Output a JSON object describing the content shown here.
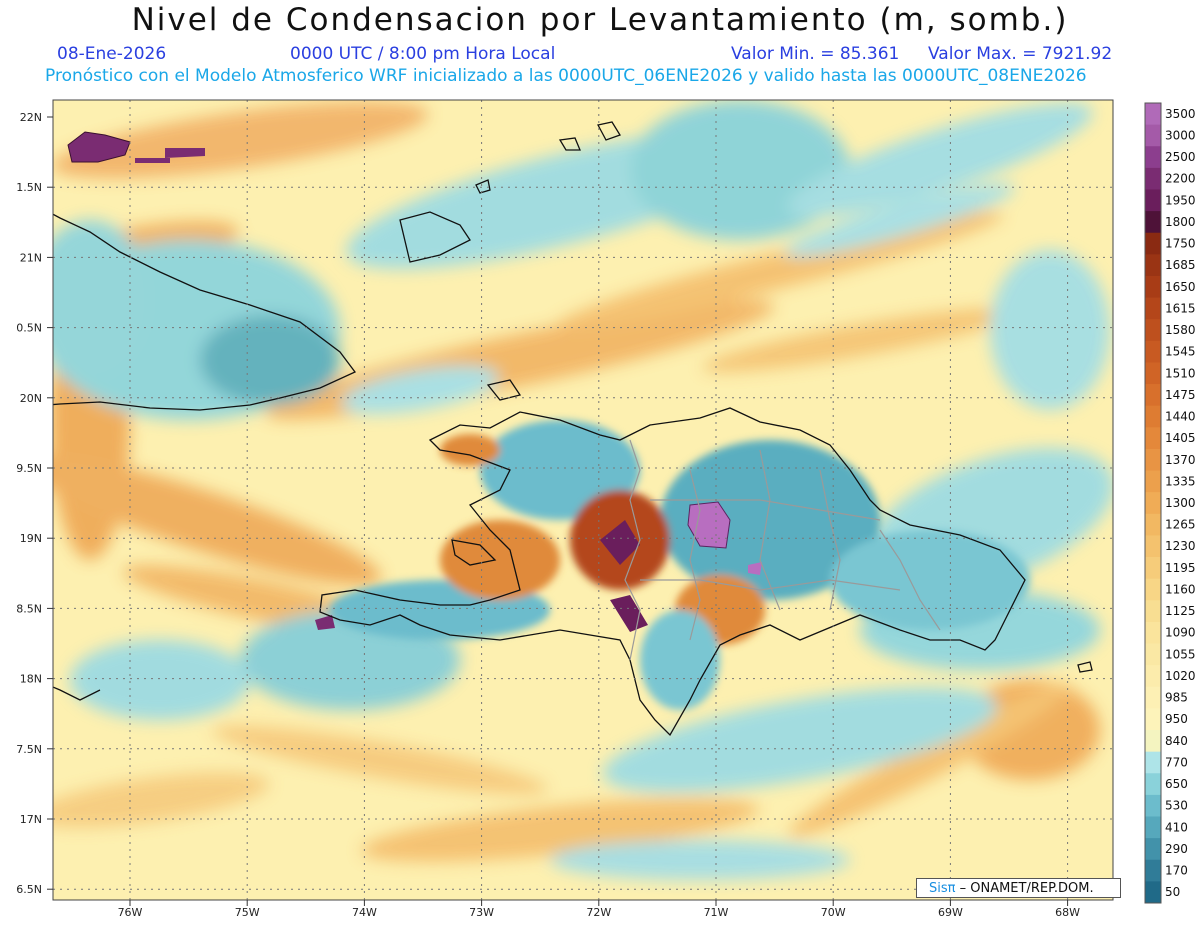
{
  "header": {
    "title": "Nivel de Condensacion por Levantamiento (m, somb.)",
    "date": "08-Ene-2026",
    "time": "0000 UTC / 8:00 pm Hora Local",
    "valmin": "Valor Min. = 85.361",
    "valmax": "Valor Max. = 7921.92",
    "forecast": "Pronóstico con el Modelo Atmosferico WRF inicializado a las 0000UTC_06ENE2026 y valido hasta las  0000UTC_08ENE2026"
  },
  "axes": {
    "y_labels": [
      "22N",
      "1.5N",
      "21N",
      "0.5N",
      "20N",
      "9.5N",
      "19N",
      "8.5N",
      "18N",
      "7.5N",
      "17N",
      "6.5N"
    ],
    "x_labels": [
      "76W",
      "75W",
      "74W",
      "73W",
      "72W",
      "71W",
      "70W",
      "69W",
      "68W"
    ]
  },
  "colorbar": {
    "levels": [
      "3500",
      "3000",
      "2500",
      "2200",
      "1950",
      "1800",
      "1750",
      "1685",
      "1650",
      "1615",
      "1580",
      "1545",
      "1510",
      "1475",
      "1440",
      "1405",
      "1370",
      "1335",
      "1300",
      "1265",
      "1230",
      "1195",
      "1160",
      "1125",
      "1090",
      "1055",
      "1020",
      "985",
      "950",
      "840",
      "770",
      "650",
      "530",
      "410",
      "290",
      "170",
      "50"
    ],
    "colors": [
      "#b06ab8",
      "#a45aa8",
      "#8c3e8e",
      "#7a2c72",
      "#6a1e5c",
      "#4e1238",
      "#8a2a12",
      "#9a3414",
      "#a83c16",
      "#b4461a",
      "#be501e",
      "#c85a22",
      "#d06426",
      "#d8702c",
      "#de7c32",
      "#e4883a",
      "#e89444",
      "#eca04c",
      "#f0ac56",
      "#f2b862",
      "#f4c26e",
      "#f6cc7a",
      "#f8d686",
      "#f8de92",
      "#fae49c",
      "#fae8a4",
      "#fcecac",
      "#fdf0b4",
      "#fdf3ba",
      "#f4f4c0",
      "#aee4e8",
      "#8ad2da",
      "#6cbccc",
      "#56a8bc",
      "#4292aa",
      "#307c98",
      "#206a88"
    ]
  },
  "credit": {
    "sis": "Sisπ",
    "org": "– ONAMET/REP.DOM."
  }
}
